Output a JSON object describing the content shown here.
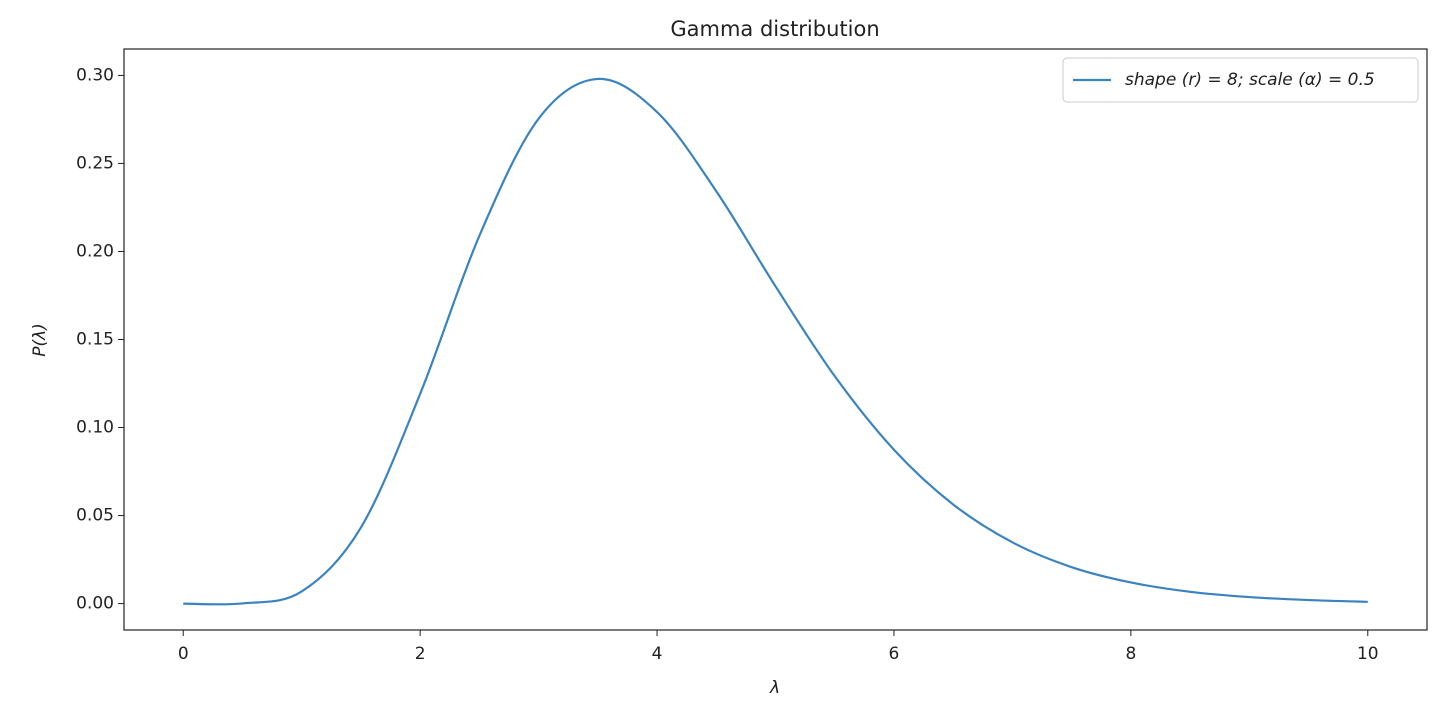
{
  "chart_data": {
    "type": "line",
    "title": "Gamma distribution",
    "x_label": "λ",
    "y_label": "P(λ)",
    "x": [
      0,
      0.5,
      1,
      1.5,
      2,
      2.5,
      3,
      3.5,
      4,
      4.5,
      5,
      5.5,
      6,
      6.5,
      7,
      7.5,
      8,
      8.5,
      9,
      9.5,
      10
    ],
    "series": [
      {
        "name": "shape (r) = 8; scale (α) = 0.5",
        "color": "#3b83c0",
        "values": [
          0,
          0.0001,
          0.0069,
          0.0432,
          0.1191,
          0.2089,
          0.2754,
          0.298,
          0.2792,
          0.2342,
          0.1802,
          0.1292,
          0.0874,
          0.0563,
          0.0348,
          0.0207,
          0.012,
          0.0067,
          0.0037,
          0.002,
          0.001
        ]
      }
    ],
    "xlim": [
      -0.5,
      10.5
    ],
    "xticks": [
      0,
      2,
      4,
      6,
      8,
      10
    ],
    "ylim": [
      -0.015,
      0.315
    ],
    "yticks": [
      {
        "value": 0,
        "label": "0.00"
      },
      {
        "value": 0.05,
        "label": "0.05"
      },
      {
        "value": 0.1,
        "label": "0.10"
      },
      {
        "value": 0.15,
        "label": "0.15"
      },
      {
        "value": 0.2,
        "label": "0.20"
      },
      {
        "value": 0.25,
        "label": "0.25"
      },
      {
        "value": 0.3,
        "label": "0.30"
      }
    ],
    "legend_position": "upper right",
    "grid": false
  }
}
